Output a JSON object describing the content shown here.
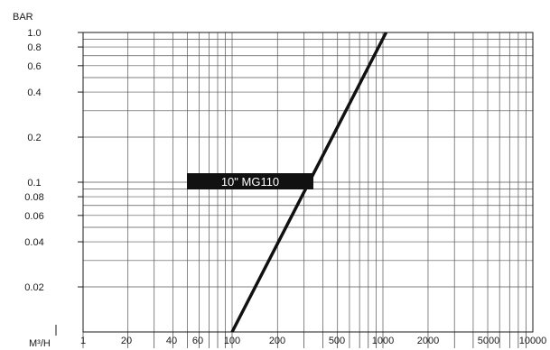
{
  "chart_data": {
    "type": "line",
    "title": "",
    "xlabel": "M³/H",
    "ylabel": "BAR",
    "x_scale": "log",
    "y_scale": "log",
    "xlim": [
      1,
      10000
    ],
    "ylim": [
      0.01,
      1.0
    ],
    "grid": true,
    "x_ticks": [
      {
        "value": 1,
        "label": "1"
      },
      {
        "value": 20,
        "label": "20"
      },
      {
        "value": 40,
        "label": "40"
      },
      {
        "value": 60,
        "label": "60"
      },
      {
        "value": 100,
        "label": "100"
      },
      {
        "value": 200,
        "label": "200"
      },
      {
        "value": 500,
        "label": "500"
      },
      {
        "value": 1000,
        "label": "1000"
      },
      {
        "value": 2000,
        "label": "2000"
      },
      {
        "value": 5000,
        "label": "5000"
      },
      {
        "value": 10000,
        "label": "10000"
      }
    ],
    "y_ticks": [
      {
        "value": 1.0,
        "label": "1.0"
      },
      {
        "value": 0.8,
        "label": "0.8"
      },
      {
        "value": 0.6,
        "label": "0.6"
      },
      {
        "value": 0.4,
        "label": "0.4"
      },
      {
        "value": 0.2,
        "label": "0.2"
      },
      {
        "value": 0.1,
        "label": "0.1"
      },
      {
        "value": 0.08,
        "label": "0.08"
      },
      {
        "value": 0.06,
        "label": "0.06"
      },
      {
        "value": 0.04,
        "label": "0.04"
      },
      {
        "value": 0.02,
        "label": "0.02"
      }
    ],
    "series": [
      {
        "name": "10\" MG110",
        "color": "#111111",
        "x": [
          100,
          1050
        ],
        "y": [
          0.01,
          1.0
        ]
      }
    ],
    "annotations": [
      {
        "text": "10\" MG110",
        "x": 100,
        "y": 0.11,
        "background": "#111111",
        "color": "#ffffff"
      }
    ]
  }
}
